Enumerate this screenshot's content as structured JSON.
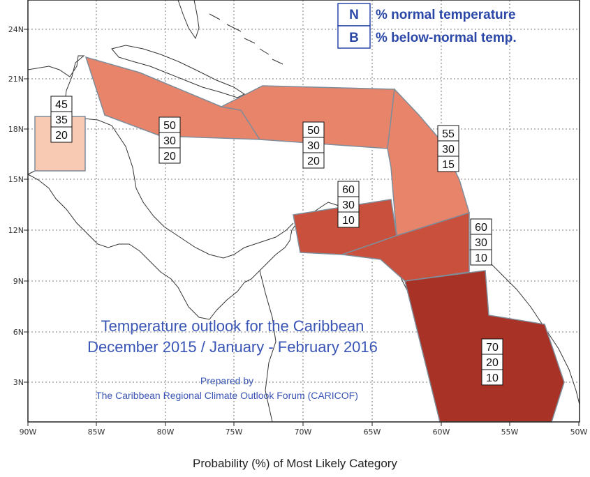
{
  "caption": "Probability (%) of Most Likely Category",
  "legend": [
    {
      "code": "N",
      "label": "% normal temperature"
    },
    {
      "code": "B",
      "label": "% below-normal temp."
    }
  ],
  "title_lines": [
    "Temperature outlook for the Caribbean",
    "December 2015 / January - February 2016"
  ],
  "credit_lines": [
    "Prepared by",
    "The Caribbean Regional Climate Outlook Forum (CARICOF)"
  ],
  "x_ticks": [
    "90W",
    "85W",
    "80W",
    "75W",
    "70W",
    "65W",
    "60W",
    "55W",
    "50W"
  ],
  "y_ticks": [
    "24N",
    "21N",
    "18N",
    "15N",
    "12N",
    "9N",
    "6N",
    "3N"
  ],
  "regions": [
    {
      "name": "belize",
      "probs": [
        "45",
        "35",
        "20"
      ],
      "color": "#f8c9b3"
    },
    {
      "name": "cuba-jamaica",
      "probs": [
        "50",
        "30",
        "20"
      ],
      "color": "#e8846a"
    },
    {
      "name": "hispaniola",
      "probs": [
        "50",
        "30",
        "20"
      ],
      "color": "#e8846a"
    },
    {
      "name": "lesser-antilles-north",
      "probs": [
        "55",
        "30",
        "15"
      ],
      "color": "#e8846a"
    },
    {
      "name": "abc-islands",
      "probs": [
        "60",
        "30",
        "10"
      ],
      "color": "#c9503c"
    },
    {
      "name": "trinidad-coast",
      "probs": [
        "60",
        "30",
        "10"
      ],
      "color": "#c9503c"
    },
    {
      "name": "guianas",
      "probs": [
        "70",
        "20",
        "10"
      ],
      "color": "#a83225"
    }
  ]
}
